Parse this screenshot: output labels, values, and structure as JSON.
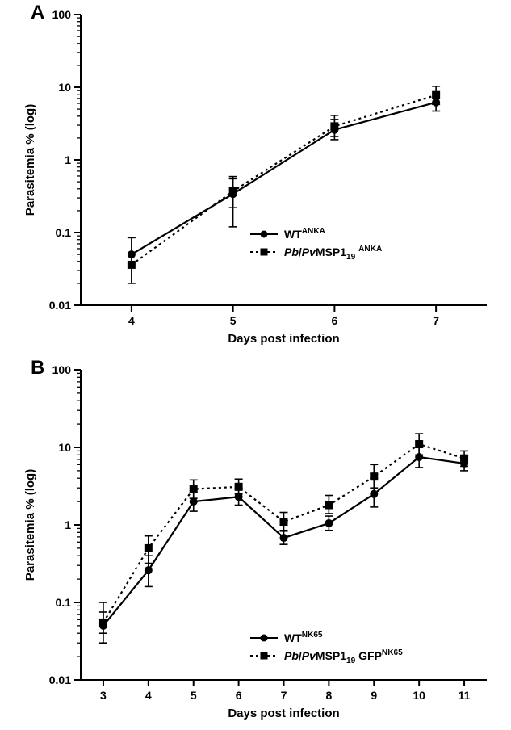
{
  "panelA": {
    "label": "A",
    "type": "line",
    "y_label": "Parasitemia % (log)",
    "x_label": "Days post infection",
    "x_ticks": [
      4,
      5,
      6,
      7
    ],
    "y_ticks": [
      0.01,
      0.1,
      1,
      10,
      100
    ],
    "x_range": [
      3.5,
      7.5
    ],
    "y_range_log": [
      -2,
      2
    ],
    "legend": [
      {
        "name": "WT^ANKA",
        "marker": "circle",
        "dash": "solid"
      },
      {
        "name": "Pb/PvMSP1_19^ANKA",
        "marker": "square",
        "dash": "dot"
      }
    ],
    "series": [
      {
        "name": "WT^ANKA",
        "marker": "circle",
        "dash": "solid",
        "color": "#000000",
        "points": [
          {
            "x": 4,
            "y": 0.05,
            "elo": 0.03,
            "ehi": 0.035
          },
          {
            "x": 5,
            "y": 0.34,
            "elo": 0.22,
            "ehi": 0.25
          },
          {
            "x": 6,
            "y": 2.6,
            "elo": 0.7,
            "ehi": 1.0
          },
          {
            "x": 7,
            "y": 6.2,
            "elo": 1.5,
            "ehi": 1.8
          }
        ]
      },
      {
        "name": "Pb/PvMSP1_19^ANKA",
        "marker": "square",
        "dash": "dot",
        "color": "#000000",
        "points": [
          {
            "x": 4,
            "y": 0.036,
            "elo": 0.0,
            "ehi": 0.0
          },
          {
            "x": 5,
            "y": 0.37,
            "elo": 0.15,
            "ehi": 0.18
          },
          {
            "x": 6,
            "y": 2.9,
            "elo": 0.8,
            "ehi": 1.2
          },
          {
            "x": 7,
            "y": 7.8,
            "elo": 2.0,
            "ehi": 2.5
          }
        ]
      }
    ],
    "label_fontsize": 15,
    "tick_fontsize": 14,
    "line_width": 2.2,
    "marker_size": 5,
    "background": "#ffffff"
  },
  "panelB": {
    "label": "B",
    "type": "line",
    "y_label": "Parasitemia % (log)",
    "x_label": "Days post infection",
    "x_ticks": [
      3,
      4,
      5,
      6,
      7,
      8,
      9,
      10,
      11
    ],
    "y_ticks": [
      0.01,
      0.1,
      1,
      10,
      100
    ],
    "x_range": [
      2.5,
      11.5
    ],
    "y_range_log": [
      -2,
      2
    ],
    "legend": [
      {
        "name": "WT^NK65",
        "marker": "circle",
        "dash": "solid"
      },
      {
        "name": "Pb/PvMSP1_19GFP^NK65",
        "marker": "square",
        "dash": "dot"
      }
    ],
    "series": [
      {
        "name": "WT^NK65",
        "marker": "circle",
        "dash": "solid",
        "color": "#000000",
        "points": [
          {
            "x": 3,
            "y": 0.05,
            "elo": 0.02,
            "ehi": 0.05
          },
          {
            "x": 4,
            "y": 0.26,
            "elo": 0.1,
            "ehi": 0.14
          },
          {
            "x": 5,
            "y": 2.0,
            "elo": 0.5,
            "ehi": 0.6
          },
          {
            "x": 6,
            "y": 2.3,
            "elo": 0.5,
            "ehi": 0.7
          },
          {
            "x": 7,
            "y": 0.68,
            "elo": 0.12,
            "ehi": 0.15
          },
          {
            "x": 8,
            "y": 1.05,
            "elo": 0.2,
            "ehi": 0.25
          },
          {
            "x": 9,
            "y": 2.5,
            "elo": 0.8,
            "ehi": 1.5
          },
          {
            "x": 10,
            "y": 7.5,
            "elo": 2.0,
            "ehi": 2.5
          },
          {
            "x": 11,
            "y": 6.2,
            "elo": 1.2,
            "ehi": 1.5
          }
        ]
      },
      {
        "name": "Pb/PvMSP1_19GFP^NK65",
        "marker": "square",
        "dash": "dot",
        "color": "#000000",
        "points": [
          {
            "x": 3,
            "y": 0.055,
            "elo": 0.015,
            "ehi": 0.02
          },
          {
            "x": 4,
            "y": 0.5,
            "elo": 0.18,
            "ehi": 0.22
          },
          {
            "x": 5,
            "y": 2.9,
            "elo": 0.7,
            "ehi": 0.9
          },
          {
            "x": 6,
            "y": 3.1,
            "elo": 0.6,
            "ehi": 0.8
          },
          {
            "x": 7,
            "y": 1.1,
            "elo": 0.25,
            "ehi": 0.35
          },
          {
            "x": 8,
            "y": 1.8,
            "elo": 0.4,
            "ehi": 0.6
          },
          {
            "x": 9,
            "y": 4.2,
            "elo": 1.2,
            "ehi": 1.8
          },
          {
            "x": 10,
            "y": 11.0,
            "elo": 3.0,
            "ehi": 4.0
          },
          {
            "x": 11,
            "y": 7.2,
            "elo": 1.5,
            "ehi": 1.8
          }
        ]
      }
    ],
    "label_fontsize": 15,
    "tick_fontsize": 14,
    "line_width": 2.2,
    "marker_size": 5,
    "background": "#ffffff"
  }
}
